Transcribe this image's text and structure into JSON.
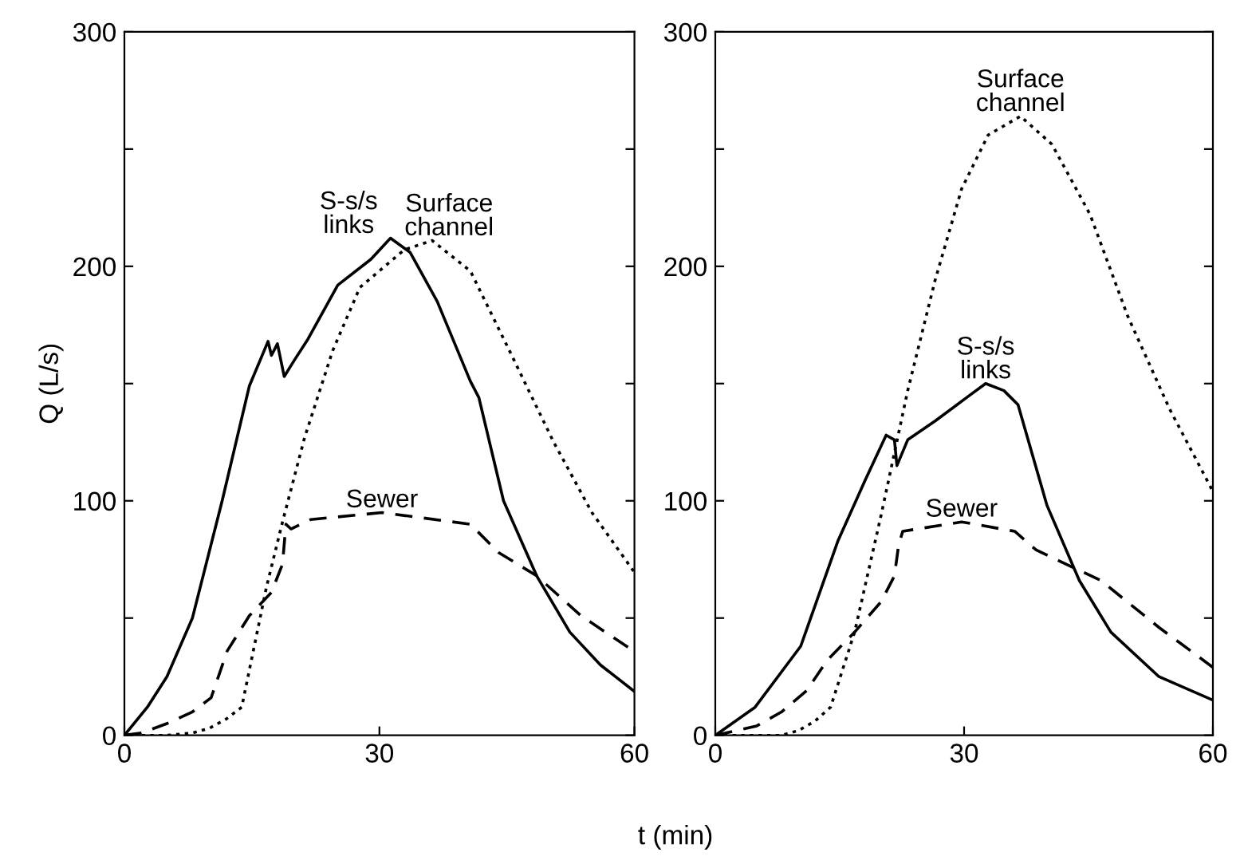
{
  "chart_data": [
    {
      "type": "line",
      "xlabel": "t (min)",
      "ylabel": "Q (L/s)",
      "xlim": [
        0,
        60
      ],
      "xticks": [
        0,
        30,
        60
      ],
      "ylim": [
        0,
        300
      ],
      "yticks": [
        0,
        {
          "value": 50,
          "label": null
        },
        100,
        {
          "value": 150,
          "label": null
        },
        200,
        {
          "value": 250,
          "label": null
        },
        300
      ],
      "grid": false,
      "legend": false,
      "series": [
        {
          "name": "S-s/s links",
          "color": "#000000",
          "line_style": "solid",
          "x": [
            0,
            2.7,
            5,
            8,
            11.5,
            14.7,
            16.9,
            17.3,
            18,
            18.8,
            20,
            21.6,
            25.1,
            29,
            31.3,
            33.6,
            36.8,
            40.7,
            41.7,
            44.6,
            48.5,
            52.4,
            56,
            59.9
          ],
          "values": [
            0,
            12,
            25,
            50,
            100,
            149,
            168,
            162,
            167,
            153,
            160,
            169,
            192,
            203,
            212,
            206,
            185,
            151,
            144,
            100,
            68,
            44,
            30,
            19
          ]
        },
        {
          "name": "Surface channel",
          "color": "#000000",
          "line_style": "dotted",
          "x": [
            0,
            5,
            8,
            10,
            12,
            13.8,
            16.7,
            18.6,
            21.2,
            24.5,
            27.7,
            32.9,
            36.2,
            40.7,
            45.3,
            50.5,
            55,
            59.9
          ],
          "values": [
            0,
            0,
            1,
            3,
            7,
            12,
            63,
            91,
            127,
            164,
            191,
            207,
            211,
            198,
            164,
            125,
            95,
            70
          ]
        },
        {
          "name": "Sewer",
          "color": "#000000",
          "line_style": "dashed",
          "x": [
            0,
            2,
            5,
            8,
            10.2,
            12.1,
            14.7,
            17.3,
            18.6,
            19,
            19.6,
            21.9,
            30.3,
            40.7,
            44,
            48.5,
            53.7,
            59.9
          ],
          "values": [
            0,
            1,
            5,
            10,
            16,
            36,
            51,
            61,
            73,
            90,
            88,
            92,
            95,
            90,
            78,
            68,
            51,
            36
          ]
        }
      ]
    },
    {
      "type": "line",
      "xlim": [
        0,
        60
      ],
      "xticks": [
        0,
        30,
        60
      ],
      "ylim": [
        0,
        300
      ],
      "yticks": [
        0,
        {
          "value": 50,
          "label": null
        },
        100,
        {
          "value": 150,
          "label": null
        },
        200,
        {
          "value": 250,
          "label": null
        },
        300
      ],
      "grid": false,
      "legend": false,
      "series": [
        {
          "name": "S-s/s links",
          "color": "#000000",
          "line_style": "solid",
          "x": [
            0,
            4.8,
            10.3,
            14.8,
            18.1,
            20.6,
            21.6,
            21.9,
            23.2,
            26.5,
            30.3,
            32.6,
            34.8,
            36.5,
            40,
            43.9,
            47.7,
            53.5,
            60
          ],
          "values": [
            0,
            12,
            38,
            83,
            109,
            128,
            126,
            115,
            126,
            134,
            144,
            150,
            147,
            141,
            98,
            66,
            44,
            25,
            15
          ]
        },
        {
          "name": "Surface channel",
          "color": "#000000",
          "line_style": "dotted",
          "x": [
            0,
            8,
            10,
            12,
            13.9,
            16.8,
            20,
            23.2,
            26.5,
            29.7,
            32.9,
            36.8,
            40.6,
            45.2,
            49.7,
            54.8,
            60
          ],
          "values": [
            0,
            0,
            2,
            6,
            12,
            44,
            94,
            147,
            194,
            233,
            256,
            264,
            252,
            222,
            179,
            139,
            104
          ]
        },
        {
          "name": "Sewer",
          "color": "#000000",
          "line_style": "dashed",
          "x": [
            0,
            5,
            8,
            11,
            13.5,
            16.8,
            20,
            21.6,
            22.1,
            22.6,
            29.7,
            36.1,
            38.7,
            46.5,
            53.5,
            60
          ],
          "values": [
            0,
            4,
            10,
            19,
            32,
            44,
            57,
            68,
            81,
            87,
            91,
            87,
            79,
            66,
            46,
            29
          ]
        }
      ]
    }
  ]
}
